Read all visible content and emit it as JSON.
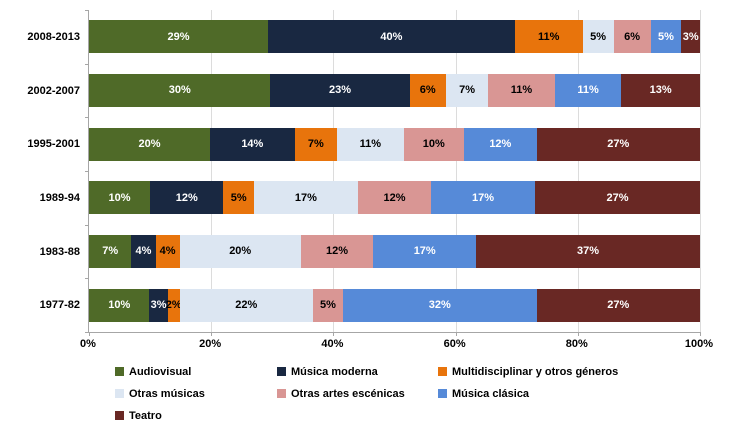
{
  "chart_data": {
    "type": "bar",
    "orientation": "horizontal",
    "stacked": true,
    "stacked_mode": "percent",
    "title": "",
    "xlabel": "",
    "ylabel": "",
    "grid": true,
    "legend_position": "bottom",
    "categories": [
      "2008-2013",
      "2002-2007",
      "1995-2001",
      "1989-94",
      "1983-88",
      "1977-82"
    ],
    "series": [
      {
        "name": "Audiovisual",
        "color": "#4F6A28",
        "label_color": "#FFFFFF",
        "values": [
          29,
          30,
          20,
          10,
          7,
          10
        ]
      },
      {
        "name": "Música moderna",
        "color": "#192841",
        "label_color": "#FFFFFF",
        "values": [
          40,
          23,
          14,
          12,
          4,
          3
        ]
      },
      {
        "name": "Multidisciplinar y otros géneros",
        "color": "#E8740C",
        "label_color": "#000000",
        "values": [
          11,
          6,
          7,
          5,
          4,
          2
        ]
      },
      {
        "name": "Otras músicas",
        "color": "#DCE6F2",
        "label_color": "#000000",
        "values": [
          5,
          7,
          11,
          17,
          20,
          22
        ]
      },
      {
        "name": "Otras artes escénicas",
        "color": "#D99694",
        "label_color": "#000000",
        "values": [
          6,
          11,
          10,
          12,
          12,
          5
        ]
      },
      {
        "name": "Música clásica",
        "color": "#568AD8",
        "label_color": "#FFFFFF",
        "values": [
          5,
          11,
          12,
          17,
          17,
          32
        ]
      },
      {
        "name": "Teatro",
        "color": "#692824",
        "label_color": "#FFFFFF",
        "values": [
          3,
          13,
          27,
          27,
          37,
          27
        ]
      }
    ],
    "x_axis": {
      "range": [
        0,
        100
      ],
      "tick_step": 20,
      "ticks": [
        "0%",
        "20%",
        "40%",
        "60%",
        "80%",
        "100%"
      ]
    },
    "axis_color": "#A6A6A6",
    "gridline_color": "#DCDCDC",
    "value_suffix": "%"
  }
}
